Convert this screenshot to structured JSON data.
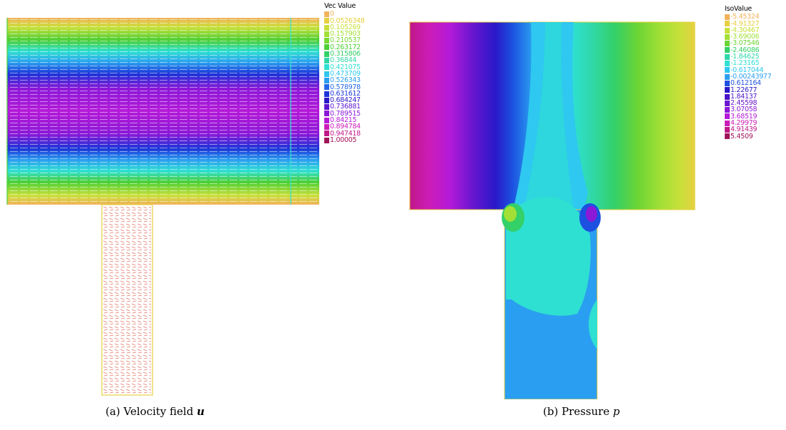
{
  "figure": {
    "panel_a": {
      "caption_prefix": "(a) Velocity field ",
      "caption_symbol": "u",
      "legend_title": "Vec Value",
      "legend": [
        {
          "label": "0",
          "color": "#f2b25a"
        },
        {
          "label": "0.0526348",
          "color": "#e6d040"
        },
        {
          "label": "0.105269",
          "color": "#c8e03a"
        },
        {
          "label": "0.157903",
          "color": "#a2e036"
        },
        {
          "label": "0.210537",
          "color": "#78d832"
        },
        {
          "label": "0.263172",
          "color": "#4ccf34"
        },
        {
          "label": "0.315806",
          "color": "#34d068"
        },
        {
          "label": "0.36844",
          "color": "#30d8a8"
        },
        {
          "label": "0.421075",
          "color": "#2ee0d2"
        },
        {
          "label": "0.473709",
          "color": "#2ec8f0"
        },
        {
          "label": "0.526343",
          "color": "#2a9ef0"
        },
        {
          "label": "0.578978",
          "color": "#2268e8"
        },
        {
          "label": "0.631612",
          "color": "#1c34d8"
        },
        {
          "label": "0.684247",
          "color": "#2a18c8"
        },
        {
          "label": "0.736881",
          "color": "#5a14d0"
        },
        {
          "label": "0.789515",
          "color": "#8c18d8"
        },
        {
          "label": "0.84215",
          "color": "#b41ad8"
        },
        {
          "label": "0.894784",
          "color": "#cc1cb8"
        },
        {
          "label": "0.947418",
          "color": "#c01888"
        },
        {
          "label": "1.00005",
          "color": "#a01458"
        }
      ]
    },
    "panel_b": {
      "caption_prefix": "(b) Pressure ",
      "caption_symbol": "p",
      "legend_title": "IsoValue",
      "legend": [
        {
          "label": "-5.45324",
          "color": "#f2b25a"
        },
        {
          "label": "-4.91327",
          "color": "#e6d040"
        },
        {
          "label": "-4.30467",
          "color": "#c8e03a"
        },
        {
          "label": "-3.69006",
          "color": "#a2e036"
        },
        {
          "label": "-3.07546",
          "color": "#6cd434"
        },
        {
          "label": "-2.46086",
          "color": "#34d068"
        },
        {
          "label": "-1.84625",
          "color": "#30d8a8"
        },
        {
          "label": "-1.23165",
          "color": "#2ee0d2"
        },
        {
          "label": "-0.617044",
          "color": "#2ec8f0"
        },
        {
          "label": "-0.00243977",
          "color": "#2a9ef0"
        },
        {
          "label": "0.612164",
          "color": "#1c50e0"
        },
        {
          "label": "1.22677",
          "color": "#2a18c8"
        },
        {
          "label": "1.84137",
          "color": "#4a14c8"
        },
        {
          "label": "2.45598",
          "color": "#6a16d0"
        },
        {
          "label": "3.07058",
          "color": "#8c18d8"
        },
        {
          "label": "3.68519",
          "color": "#b41ad8"
        },
        {
          "label": "4.29979",
          "color": "#cc1cb8"
        },
        {
          "label": "4.91439",
          "color": "#c01888"
        },
        {
          "label": "5.4509",
          "color": "#a01458"
        }
      ]
    }
  }
}
